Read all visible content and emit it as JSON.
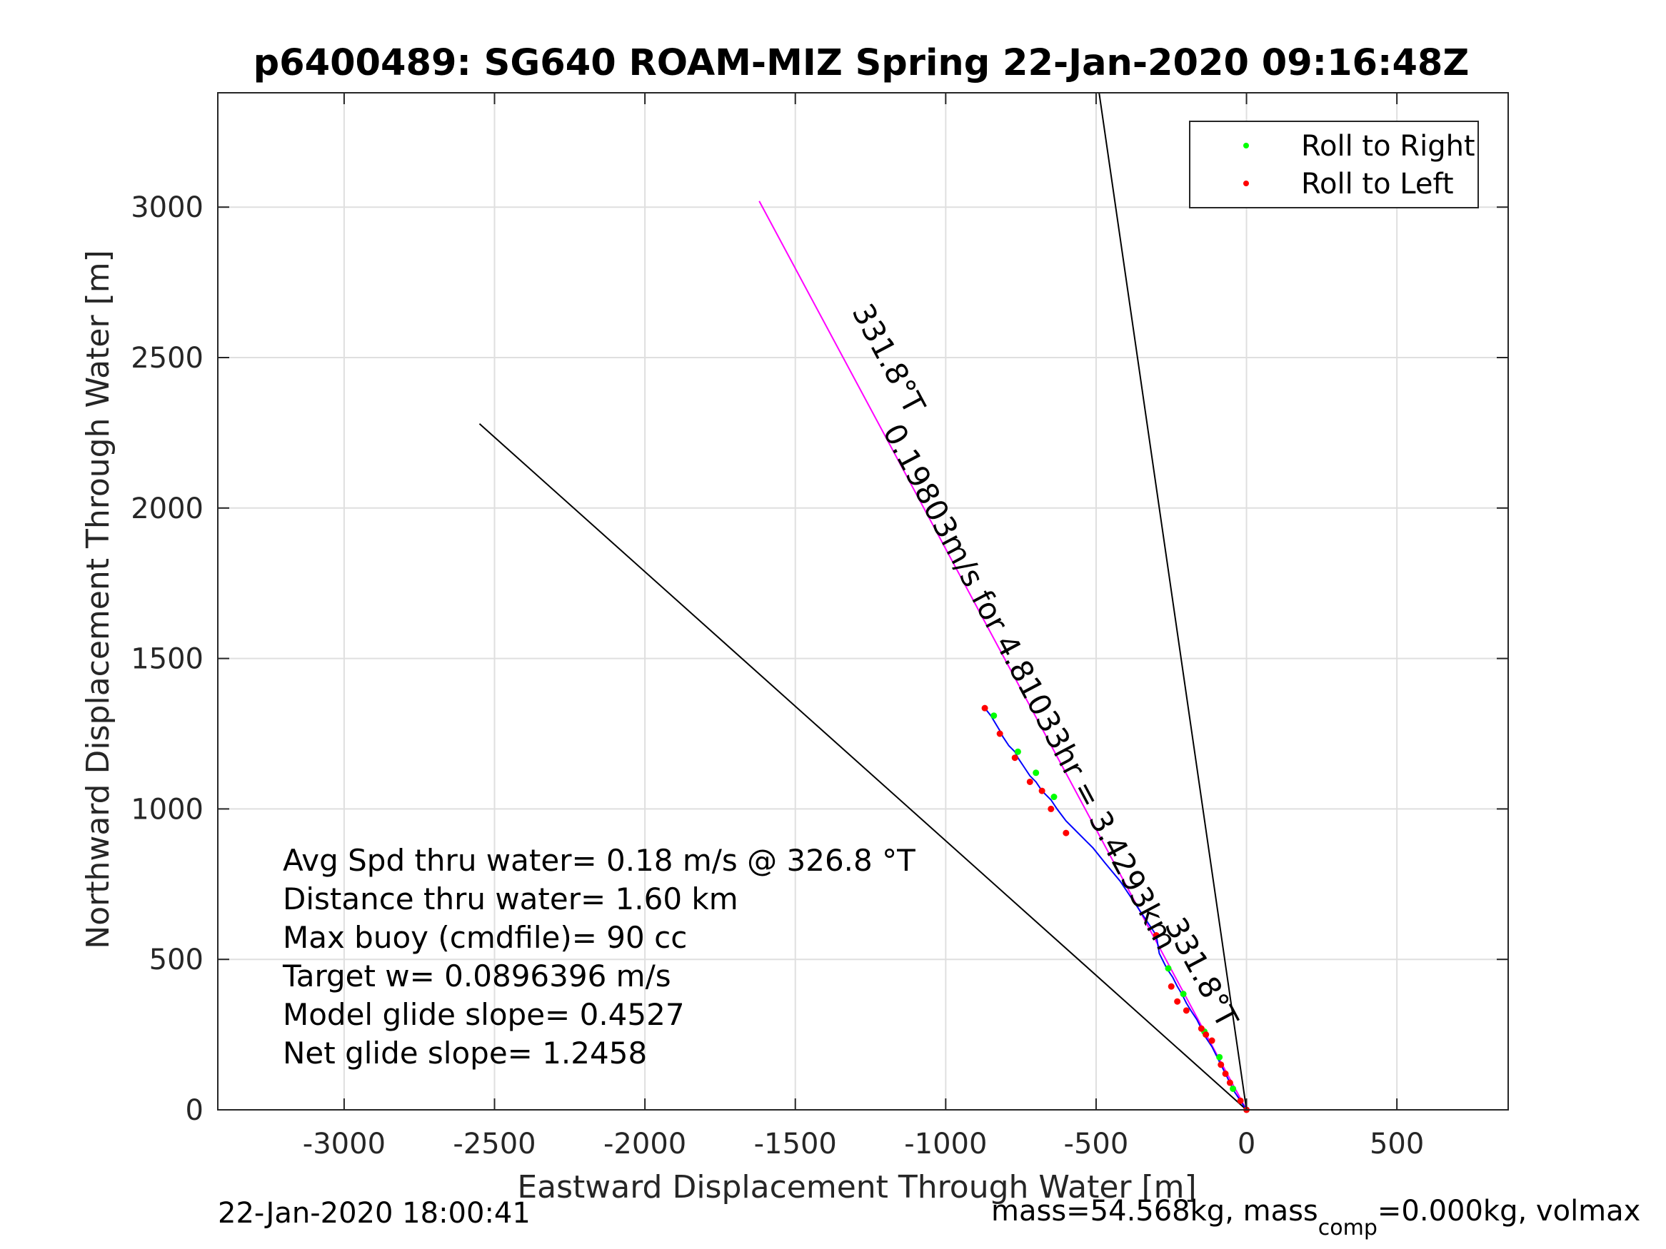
{
  "chart_data": {
    "type": "scatter",
    "title": "p6400489: SG640 ROAM-MIZ Spring 22-Jan-2020 09:16:48Z",
    "xlabel": "Eastward Displacement Through Water [m]",
    "ylabel": "Northward Displacement Through Water [m]",
    "xlim": [
      -3420,
      870
    ],
    "ylim": [
      0,
      3380
    ],
    "grid": true,
    "legend_position": "top-right",
    "x_ticks": [
      -3000,
      -2500,
      -2000,
      -1500,
      -1000,
      -500,
      0,
      500
    ],
    "x_tick_labels": [
      "-3000",
      "-2500",
      "-2000",
      "-1500",
      "-1000",
      "-500",
      "0",
      "500"
    ],
    "y_ticks": [
      0,
      500,
      1000,
      1500,
      2000,
      2500,
      3000
    ],
    "y_tick_labels": [
      "0",
      "500",
      "1000",
      "1500",
      "2000",
      "2500",
      "3000"
    ],
    "track_color": "#0000ff",
    "course_color": "#ff00ff",
    "track": {
      "x": [
        0,
        -20,
        -40,
        -55,
        -70,
        -85,
        -100,
        -115,
        -135,
        -150,
        -165,
        -185,
        -200,
        -215,
        -230,
        -245,
        -265,
        -290,
        -300,
        -340,
        -380,
        -420,
        -470,
        -510,
        -560,
        -600,
        -630,
        -650,
        -680,
        -700,
        -720,
        -740,
        -760,
        -770,
        -790,
        -810,
        -820,
        -835,
        -850,
        -870
      ],
      "y": [
        0,
        30,
        60,
        90,
        120,
        150,
        180,
        210,
        240,
        270,
        300,
        330,
        355,
        385,
        410,
        440,
        470,
        520,
        580,
        640,
        700,
        760,
        820,
        870,
        920,
        960,
        1000,
        1030,
        1060,
        1090,
        1110,
        1140,
        1170,
        1190,
        1210,
        1240,
        1260,
        1285,
        1310,
        1335
      ]
    },
    "series": [
      {
        "name": "Roll to Right",
        "color": "#00ff00",
        "x": [
          -45,
          -90,
          -140,
          -210,
          -260,
          -640,
          -700,
          -760,
          -840
        ],
        "y": [
          70,
          175,
          260,
          385,
          470,
          1040,
          1120,
          1190,
          1310
        ]
      },
      {
        "name": "Roll to Left",
        "color": "#ff0000",
        "x": [
          0,
          -20,
          -55,
          -70,
          -85,
          -115,
          -135,
          -150,
          -200,
          -230,
          -250,
          -300,
          -600,
          -650,
          -680,
          -720,
          -770,
          -820,
          -870
        ],
        "y": [
          0,
          30,
          90,
          120,
          150,
          230,
          250,
          270,
          330,
          360,
          410,
          580,
          920,
          1000,
          1060,
          1090,
          1170,
          1250,
          1335
        ]
      }
    ],
    "reference_lines": [
      {
        "x": [
          0,
          -1620
        ],
        "y": [
          0,
          3020
        ],
        "color": "#ff00ff"
      },
      {
        "x": [
          0,
          -2550
        ],
        "y": [
          0,
          2280
        ],
        "color": "#000000"
      },
      {
        "x": [
          0,
          -490
        ],
        "y": [
          0,
          3380
        ],
        "color": "#000000"
      }
    ],
    "line_labels": [
      {
        "text": "331.8°T",
        "x": -1220,
        "y": 2480,
        "rotate": 62
      },
      {
        "text": "0.19803m/s for 4.81033hr = 3.4293km",
        "x": -750,
        "y": 1390,
        "rotate": 62
      },
      {
        "text": "331.8°T",
        "x": -180,
        "y": 440,
        "rotate": 62
      }
    ],
    "annotations": [
      "Avg Spd thru water=  0.18 m/s @ 326.8 °T",
      "Distance thru water=  1.60 km",
      "Max buoy (cmdfile)= 90 cc",
      "Target w= 0.0896396 m/s",
      "Model glide slope= 0.4527",
      "Net glide slope= 1.2458"
    ]
  },
  "footer": {
    "timestamp": "22-Jan-2020 18:00:41",
    "mass_main": "mass=54.568kg, mass",
    "mass_sub": "comp",
    "mass_tail": "=0.000kg, volmax"
  }
}
